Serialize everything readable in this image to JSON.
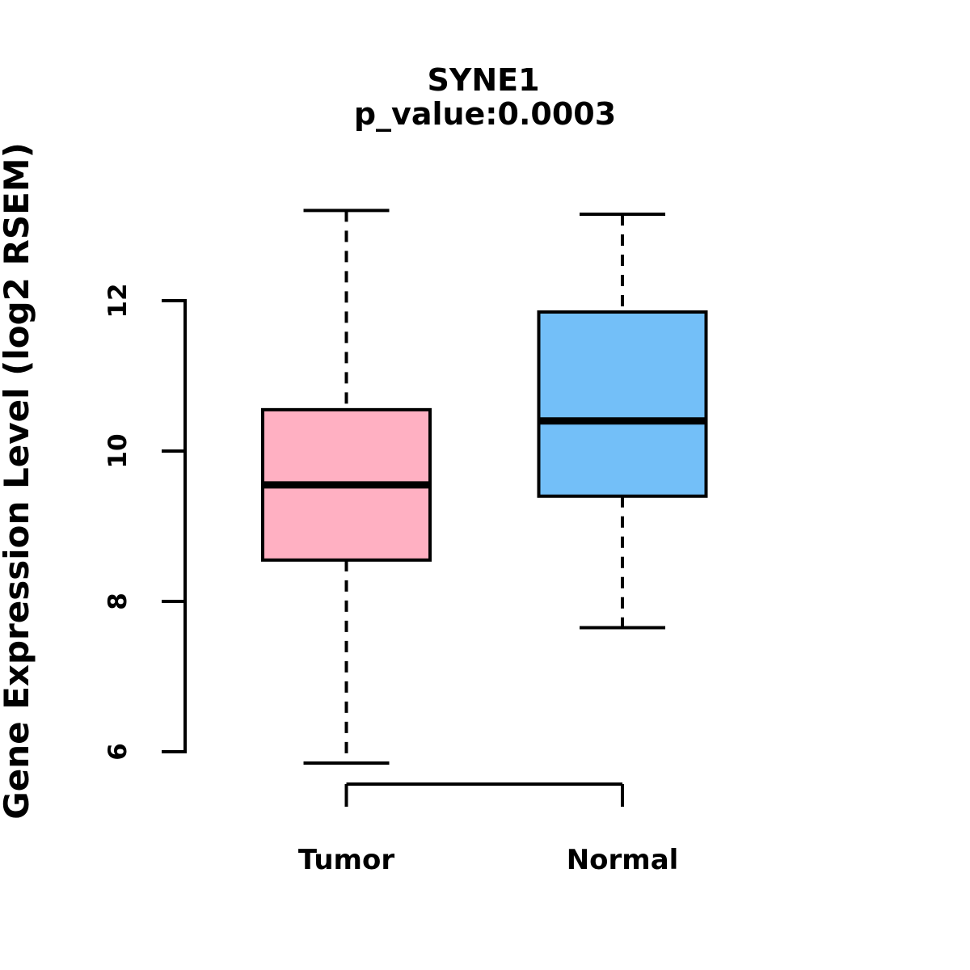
{
  "chart_data": {
    "type": "box",
    "title": "SYNE1",
    "subtitle": "p_value:0.0003",
    "ylabel": "Gene Expression Level (log2 RSEM)",
    "xlabel": "",
    "categories": [
      "Tumor",
      "Normal"
    ],
    "y_ticks": [
      6,
      8,
      10,
      12
    ],
    "ylim": [
      5.5,
      13.5
    ],
    "grid": false,
    "legend": "none",
    "series": [
      {
        "name": "Tumor",
        "fill_color": "#FFB0C2",
        "whisker_low": 5.85,
        "q1": 8.55,
        "median": 9.55,
        "q3": 10.55,
        "whisker_high": 13.2
      },
      {
        "name": "Normal",
        "fill_color": "#73BFF8",
        "whisker_low": 7.65,
        "q1": 9.4,
        "median": 10.4,
        "q3": 11.85,
        "whisker_high": 13.15
      }
    ],
    "stroke_color": "#000000",
    "background_color": "#FFFFFF"
  }
}
